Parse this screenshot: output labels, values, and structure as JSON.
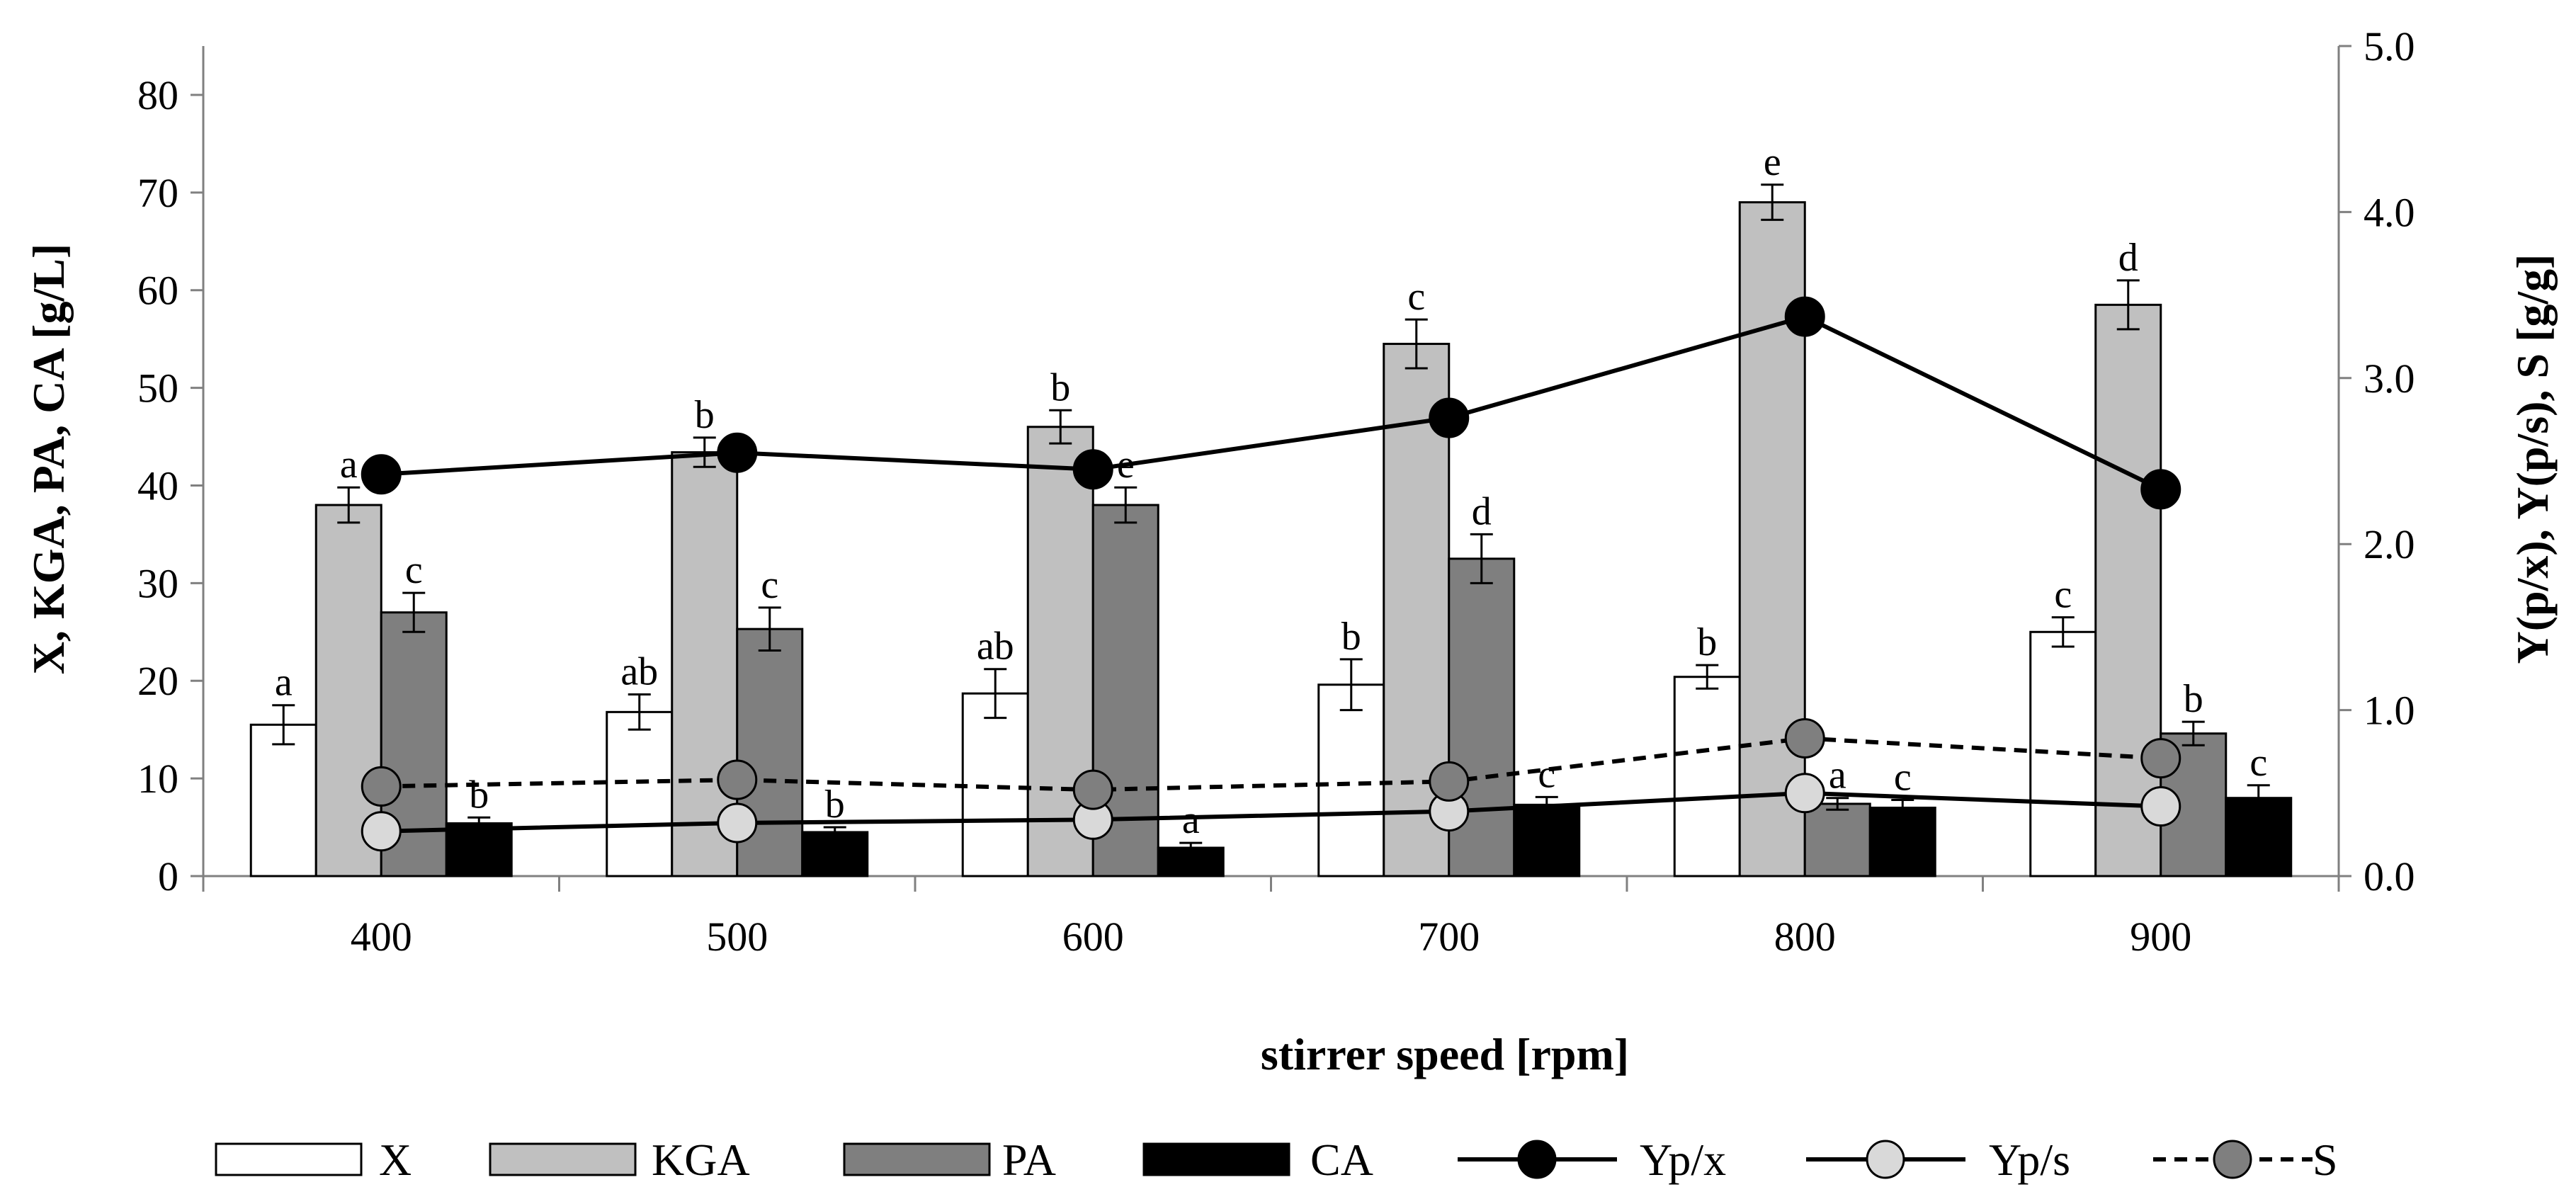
{
  "chart_data": {
    "type": "bar",
    "xlabel": "stirrer speed [rpm]",
    "ylabel": "X, KGA, PA, CA [g/L]",
    "ylabel_right": "Y(p/x), Y(p/s), S  [g/g]",
    "ylim": [
      0,
      85
    ],
    "ylim_right": [
      0,
      5
    ],
    "left_ticks": [
      "0",
      "10",
      "20",
      "30",
      "40",
      "50",
      "60",
      "70",
      "80"
    ],
    "right_ticks": [
      "0.0",
      "1.0",
      "2.0",
      "3.0",
      "4.0",
      "5.0"
    ],
    "categories": [
      "400",
      "500",
      "600",
      "700",
      "800",
      "900"
    ],
    "series": [
      {
        "name": "X",
        "kind": "bar",
        "axis": "left",
        "fill": "#ffffff",
        "values": [
          15.5,
          16.8,
          18.7,
          19.6,
          20.4,
          25.0
        ],
        "errors": [
          2.0,
          1.8,
          2.5,
          2.6,
          1.2,
          1.5
        ],
        "labels": [
          "a",
          "ab",
          "ab",
          "b",
          "b",
          "c"
        ]
      },
      {
        "name": "KGA",
        "kind": "bar",
        "axis": "left",
        "fill": "#c0c0c0",
        "values": [
          38.0,
          43.4,
          46.0,
          54.5,
          69.0,
          58.5
        ],
        "errors": [
          1.8,
          1.5,
          1.7,
          2.5,
          1.8,
          2.5
        ],
        "labels": [
          "a",
          "b",
          "b",
          "c",
          "e",
          "d"
        ]
      },
      {
        "name": "PA",
        "kind": "bar",
        "axis": "left",
        "fill": "#7f7f7f",
        "values": [
          27.0,
          25.3,
          38.0,
          32.5,
          7.4,
          14.6
        ],
        "errors": [
          2.0,
          2.2,
          1.8,
          2.5,
          0.6,
          1.2
        ],
        "labels": [
          "c",
          "c",
          "e",
          "d",
          "a",
          "b"
        ]
      },
      {
        "name": "CA",
        "kind": "bar",
        "axis": "left",
        "fill": "#000000",
        "values": [
          5.4,
          4.5,
          2.9,
          7.3,
          7.0,
          8.0
        ],
        "errors": [
          0.6,
          0.5,
          0.5,
          0.8,
          0.8,
          1.3
        ],
        "labels": [
          "b",
          "b",
          "a",
          "c",
          "c",
          "c"
        ]
      },
      {
        "name": "Yp/x",
        "kind": "line",
        "axis": "right",
        "line": "solid",
        "marker": "#000000",
        "values": [
          2.42,
          2.55,
          2.45,
          2.76,
          3.37,
          2.33
        ]
      },
      {
        "name": "Yp/s",
        "kind": "line",
        "axis": "right",
        "line": "solid",
        "marker": "#d9d9d9",
        "values": [
          0.27,
          0.32,
          0.34,
          0.39,
          0.5,
          0.42
        ]
      },
      {
        "name": "S",
        "kind": "line",
        "axis": "right",
        "line": "dashed",
        "marker": "#7f7f7f",
        "values": [
          0.54,
          0.58,
          0.52,
          0.57,
          0.83,
          0.71
        ]
      }
    ],
    "legend_position": "bottom"
  }
}
